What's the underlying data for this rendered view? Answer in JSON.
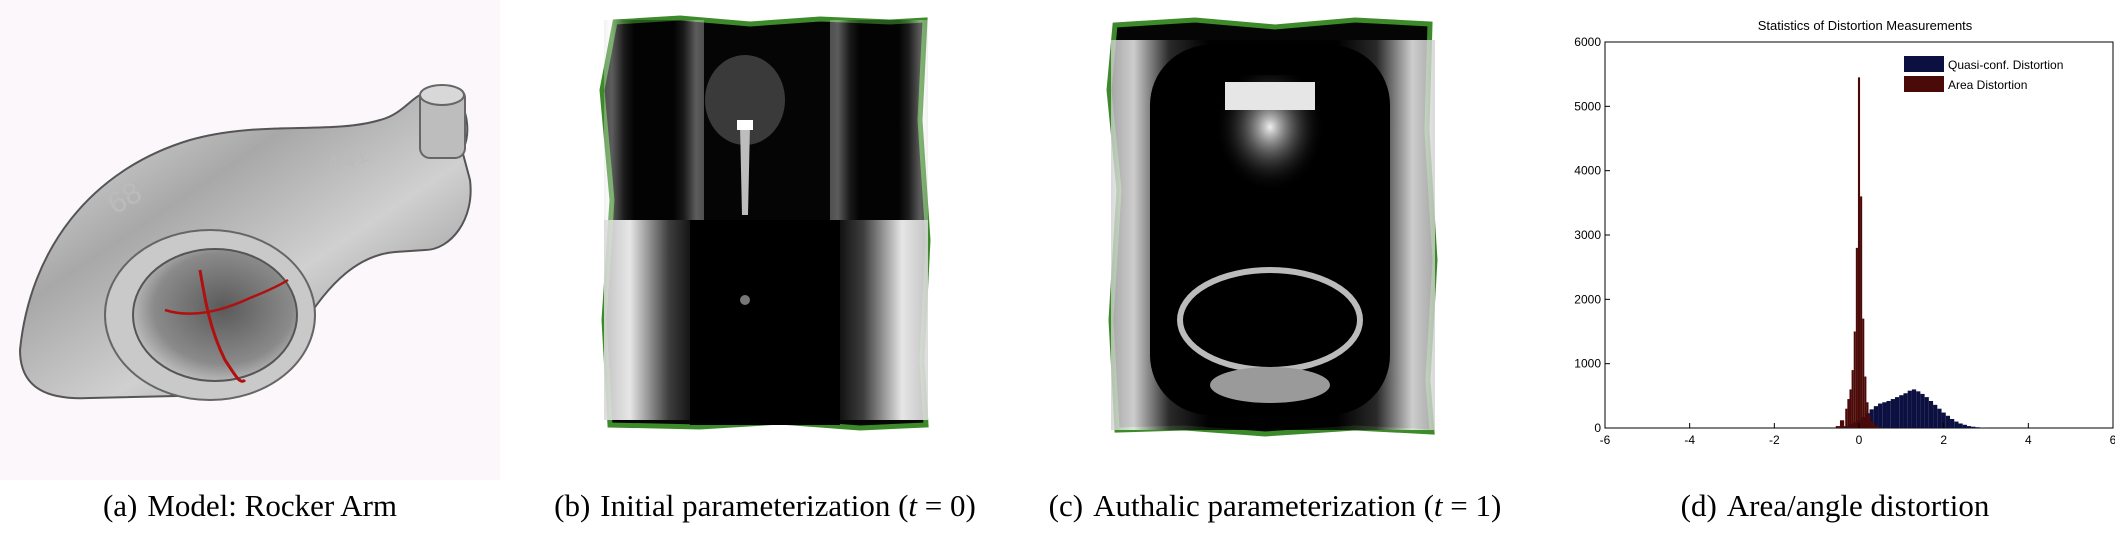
{
  "figure": {
    "captions": [
      {
        "label": "(a)",
        "text": "Model: Rocker Arm"
      },
      {
        "label": "(b)",
        "text_before": "Initial parameterization (",
        "var": "t",
        "eq": " = 0)"
      },
      {
        "label": "(c)",
        "text_before": "Authalic parameterization (",
        "var": "t",
        "eq": " = 1)"
      },
      {
        "label": "(d)",
        "text": "Area/angle distortion"
      }
    ],
    "colors": {
      "model_surface": "#9a9a9a",
      "cut_line": "#b01010",
      "boundary": "#3d8a2a",
      "quasi_conformal": "#0b1040",
      "area_distortion": "#4a0a08"
    }
  },
  "chart_data": {
    "type": "bar",
    "title": "Statistics of Distortion Measurements",
    "xlabel": "",
    "ylabel": "",
    "xlim": [
      -6,
      6
    ],
    "ylim": [
      0,
      6000
    ],
    "x_ticks": [
      "-6",
      "-4",
      "-2",
      "0",
      "2",
      "4",
      "6"
    ],
    "y_ticks": [
      "0",
      "1000",
      "2000",
      "3000",
      "4000",
      "5000",
      "6000"
    ],
    "grid": false,
    "legend_position": "top-right",
    "series": [
      {
        "name": "Quasi-conf. Distortion",
        "color": "#0b1040",
        "x": [
          -0.4,
          -0.3,
          -0.2,
          -0.1,
          0.0,
          0.1,
          0.2,
          0.3,
          0.4,
          0.5,
          0.6,
          0.7,
          0.8,
          0.9,
          1.0,
          1.1,
          1.2,
          1.3,
          1.4,
          1.5,
          1.6,
          1.7,
          1.8,
          1.9,
          2.0,
          2.1,
          2.2,
          2.3,
          2.4,
          2.5,
          2.6,
          2.7,
          2.8,
          2.9,
          3.0
        ],
        "values": [
          10,
          30,
          60,
          90,
          130,
          170,
          230,
          290,
          340,
          380,
          400,
          420,
          450,
          480,
          510,
          540,
          580,
          600,
          570,
          530,
          480,
          420,
          360,
          300,
          240,
          190,
          140,
          100,
          70,
          50,
          30,
          20,
          12,
          8,
          5
        ]
      },
      {
        "name": "Area Distortion",
        "color": "#4a0a08",
        "x": [
          -0.5,
          -0.4,
          -0.3,
          -0.25,
          -0.2,
          -0.15,
          -0.1,
          -0.05,
          0.0,
          0.05,
          0.1,
          0.15,
          0.2,
          0.25,
          0.3,
          0.4,
          0.5
        ],
        "values": [
          30,
          120,
          300,
          450,
          600,
          900,
          1500,
          2800,
          5450,
          3600,
          1700,
          800,
          400,
          200,
          100,
          40,
          15
        ]
      }
    ]
  }
}
